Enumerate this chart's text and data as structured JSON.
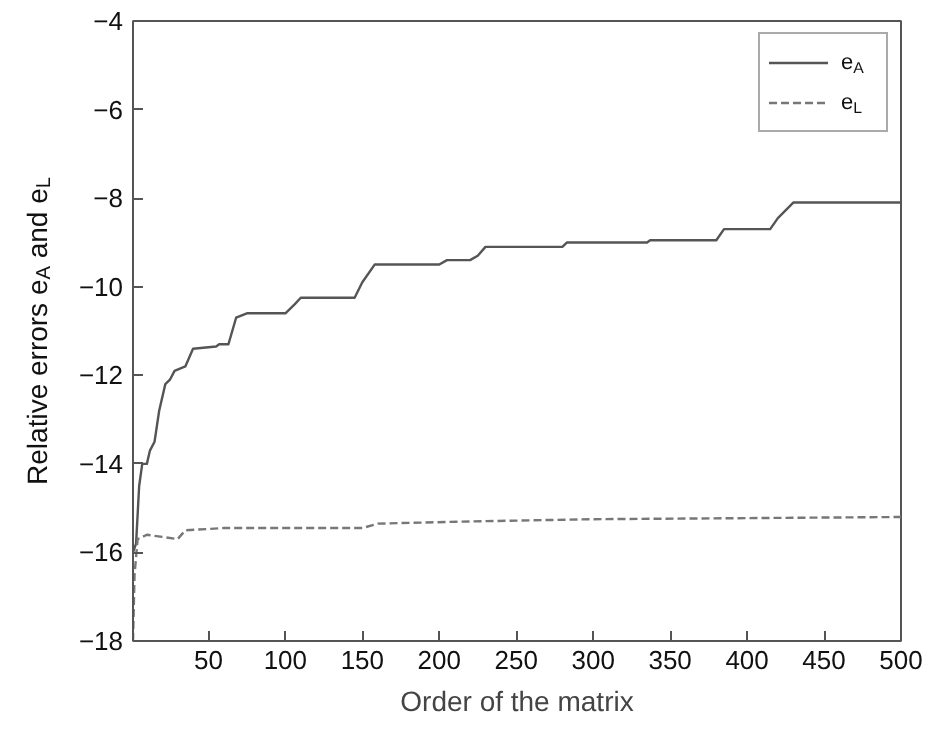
{
  "chart_data": {
    "type": "line",
    "xlabel": "Order of the matrix",
    "ylabel": "Relative errors e$_{A}$ and e$_{L}$",
    "xlim": [
      1,
      500
    ],
    "ylim": [
      -18,
      -4
    ],
    "xticks": [
      50,
      100,
      150,
      200,
      250,
      300,
      350,
      400,
      450,
      500
    ],
    "yticks": [
      -18,
      -16,
      -14,
      -12,
      -10,
      -8,
      -6,
      -4
    ],
    "grid": false,
    "legend": "top right",
    "series": [
      {
        "name": "e$_{A}$",
        "color": "#555555",
        "line_style": "solid",
        "x": [
          1,
          3,
          5,
          7,
          10,
          12,
          15,
          18,
          22,
          25,
          28,
          35,
          40,
          55,
          57,
          63,
          68,
          75,
          100,
          106,
          110,
          145,
          150,
          158,
          200,
          205,
          220,
          225,
          230,
          280,
          283,
          335,
          337,
          380,
          385,
          415,
          420,
          430,
          500
        ],
        "values": [
          -16,
          -15.8,
          -14.5,
          -14,
          -14,
          -13.7,
          -13.5,
          -12.8,
          -12.2,
          -12.1,
          -11.9,
          -11.8,
          -11.4,
          -11.35,
          -11.3,
          -11.3,
          -10.7,
          -10.6,
          -10.6,
          -10.4,
          -10.25,
          -10.25,
          -9.9,
          -9.5,
          -9.5,
          -9.4,
          -9.4,
          -9.3,
          -9.1,
          -9.1,
          -9.0,
          -9.0,
          -8.95,
          -8.95,
          -8.7,
          -8.7,
          -8.45,
          -8.1,
          -8.1
        ]
      },
      {
        "name": "e$_{L}$",
        "color": "#777777",
        "line_style": "dashed",
        "x": [
          1,
          2,
          4,
          10,
          20,
          30,
          35,
          60,
          150,
          160,
          220,
          300,
          500
        ],
        "values": [
          -18,
          -16.5,
          -15.7,
          -15.6,
          -15.65,
          -15.7,
          -15.5,
          -15.45,
          -15.45,
          -15.35,
          -15.3,
          -15.25,
          -15.2
        ]
      }
    ]
  }
}
